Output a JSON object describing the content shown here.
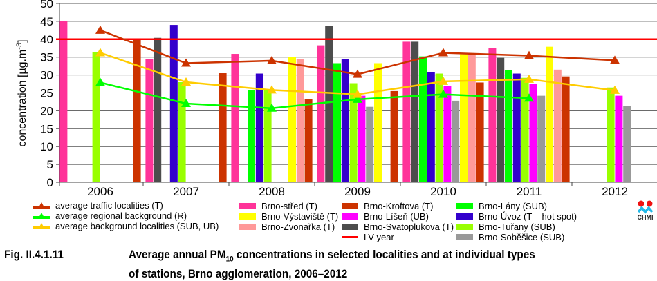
{
  "chart_data": {
    "type": "bar",
    "title": "Average annual PM10 concentrations in selected localities and at individual types of stations, Brno agglomeration, 2006–2012",
    "ylabel": "concentration [µg.m-3]",
    "ylabel_main": "concentration [µg.m",
    "ylabel_sup": "-3",
    "ylabel_end": "]",
    "xlabel": "",
    "ylim": [
      0,
      50
    ],
    "yticks": [
      "0",
      "5",
      "10",
      "15",
      "20",
      "25",
      "30",
      "35",
      "40",
      "45",
      "50"
    ],
    "grid": true,
    "categories": [
      "2006",
      "2007",
      "2008",
      "2009",
      "2010",
      "2011",
      "2012"
    ],
    "bar_series": [
      {
        "name": "Brno-střed (T)",
        "color": "#ff3399",
        "values": [
          45.0,
          34.4,
          35.9,
          38.3,
          39.3,
          37.5,
          null
        ]
      },
      {
        "name": "Brno-Svatoplukova (T)",
        "color": "#4d4d4d",
        "values": [
          null,
          40.4,
          null,
          43.7,
          39.3,
          34.8,
          null
        ]
      },
      {
        "name": "Brno-Lány (SUB)",
        "color": "#00ff00",
        "values": [
          null,
          null,
          25.7,
          33.3,
          35.2,
          31.3,
          null
        ]
      },
      {
        "name": "Brno-Úvoz (T – hot spot)",
        "color": "#3300cc",
        "values": [
          null,
          44.0,
          30.4,
          34.4,
          30.8,
          30.4,
          null
        ]
      },
      {
        "name": "Brno-Tuřany (SUB)",
        "color": "#99ff00",
        "values": [
          36.3,
          28.0,
          25.9,
          27.7,
          30.4,
          29.2,
          26.5
        ]
      },
      {
        "name": "Brno-Líšeň (UB)",
        "color": "#ff00ff",
        "values": [
          null,
          null,
          null,
          24.2,
          26.9,
          27.6,
          24.2
        ]
      },
      {
        "name": "Brno-Soběšice (SUB)",
        "color": "#999999",
        "values": [
          null,
          null,
          null,
          21.1,
          22.8,
          24.2,
          21.3
        ]
      },
      {
        "name": "Brno-Výstaviště (T)",
        "color": "#ffff00",
        "values": [
          null,
          null,
          35.0,
          33.3,
          35.8,
          37.9,
          null
        ]
      },
      {
        "name": "Brno-Zvonařka (T)",
        "color": "#ff9999",
        "values": [
          null,
          null,
          34.4,
          null,
          35.8,
          31.5,
          null
        ]
      },
      {
        "name": "Brno-Kroftova (T)",
        "color": "#cc3300",
        "values": [
          40.0,
          30.5,
          23.2,
          25.5,
          27.9,
          29.6,
          null
        ]
      }
    ],
    "bar_offsets_note": "bars shifted half a category left in original rendering",
    "line_series": [
      {
        "name": "average traffic localities (T)",
        "color": "#cc3300",
        "values": [
          42.5,
          33.3,
          34.0,
          30.2,
          36.2,
          35.4,
          34.1
        ]
      },
      {
        "name": "average regional background (R)",
        "color": "#00ff00",
        "values": [
          27.9,
          22.0,
          20.7,
          23.2,
          24.6,
          23.5,
          null
        ]
      },
      {
        "name": "average background localities (SUB, UB)",
        "color": "#ffcc00",
        "values": [
          36.2,
          28.0,
          25.8,
          24.6,
          28.2,
          28.8,
          25.7
        ]
      }
    ],
    "reference_line": {
      "name": "LV year",
      "value": 40,
      "color": "#ff0000"
    }
  },
  "legend": {
    "lines": [
      {
        "label": "average traffic localities (T)",
        "color": "#cc3300"
      },
      {
        "label": "average regional background (R)",
        "color": "#00ff00"
      },
      {
        "label": "average background localities (SUB, UB)",
        "color": "#ffcc00"
      }
    ],
    "col1": [
      {
        "label": "Brno-střed (T)",
        "color": "#ff3399"
      },
      {
        "label": "Brno-Výstaviště  (T)",
        "color": "#ffff00"
      },
      {
        "label": "Brno-Zvonařka  (T)",
        "color": "#ff9999"
      }
    ],
    "col2": [
      {
        "label": "Brno-Kroftova (T)",
        "color": "#cc3300"
      },
      {
        "label": "Brno-Líšeň (UB)",
        "color": "#ff00ff"
      },
      {
        "label": "Brno-Svatoplukova (T)",
        "color": "#4d4d4d"
      },
      {
        "label": "LV year",
        "color": "#ff0000",
        "line": true
      }
    ],
    "col3": [
      {
        "label": "Brno-Lány (SUB)",
        "color": "#00ff00"
      },
      {
        "label": "Brno-Úvoz (T – hot spot)",
        "color": "#3300cc"
      },
      {
        "label": "Brno-Tuřany (SUB)",
        "color": "#99ff00"
      },
      {
        "label": "Brno-Soběšice (SUB)",
        "color": "#999999"
      }
    ]
  },
  "logo": {
    "text": "CHMI"
  },
  "caption": {
    "label": "Fig. II.4.1.11",
    "text_a": "Average annual PM",
    "text_sub": "10",
    "text_b": " concentrations in selected localities and at individual types",
    "line2": "of stations, Brno agglomeration, 2006–2012"
  }
}
